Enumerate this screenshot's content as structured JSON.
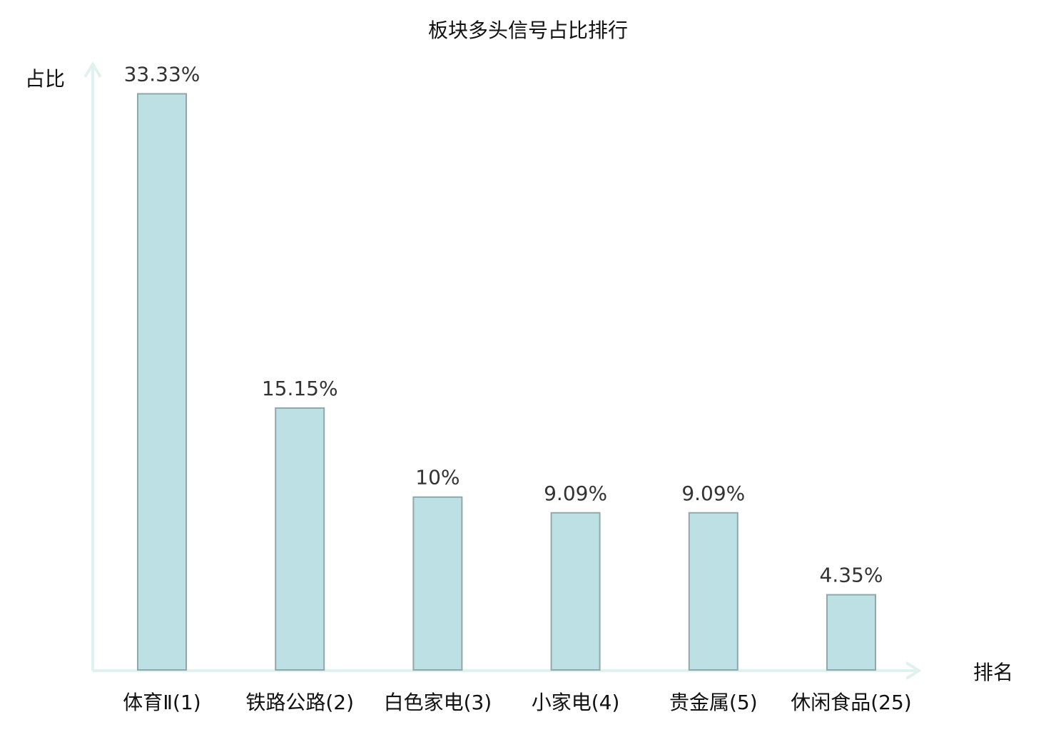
{
  "chart_data": {
    "type": "bar",
    "title": "板块多头信号占比排行",
    "xlabel": "排名",
    "ylabel": "占比",
    "categories": [
      "体育Ⅱ(1)",
      "铁路公路(2)",
      "白色家电(3)",
      "小家电(4)",
      "贵金属(5)",
      "休闲食品(25)"
    ],
    "values": [
      33.33,
      15.15,
      10,
      9.09,
      9.09,
      4.35
    ],
    "data_labels": [
      "33.33%",
      "15.15%",
      "10%",
      "9.09%",
      "9.09%",
      "4.35%"
    ],
    "highlighted_category": "休闲食品(25)",
    "ylim": [
      0,
      35
    ],
    "grid": false,
    "colors": {
      "bar_fill": "#bce0e3",
      "bar_stroke": "#8fa9aa",
      "axis": "#e0f2f0",
      "highlight_text": "#e8131a",
      "text": "#111111",
      "value_text": "#333333"
    }
  }
}
